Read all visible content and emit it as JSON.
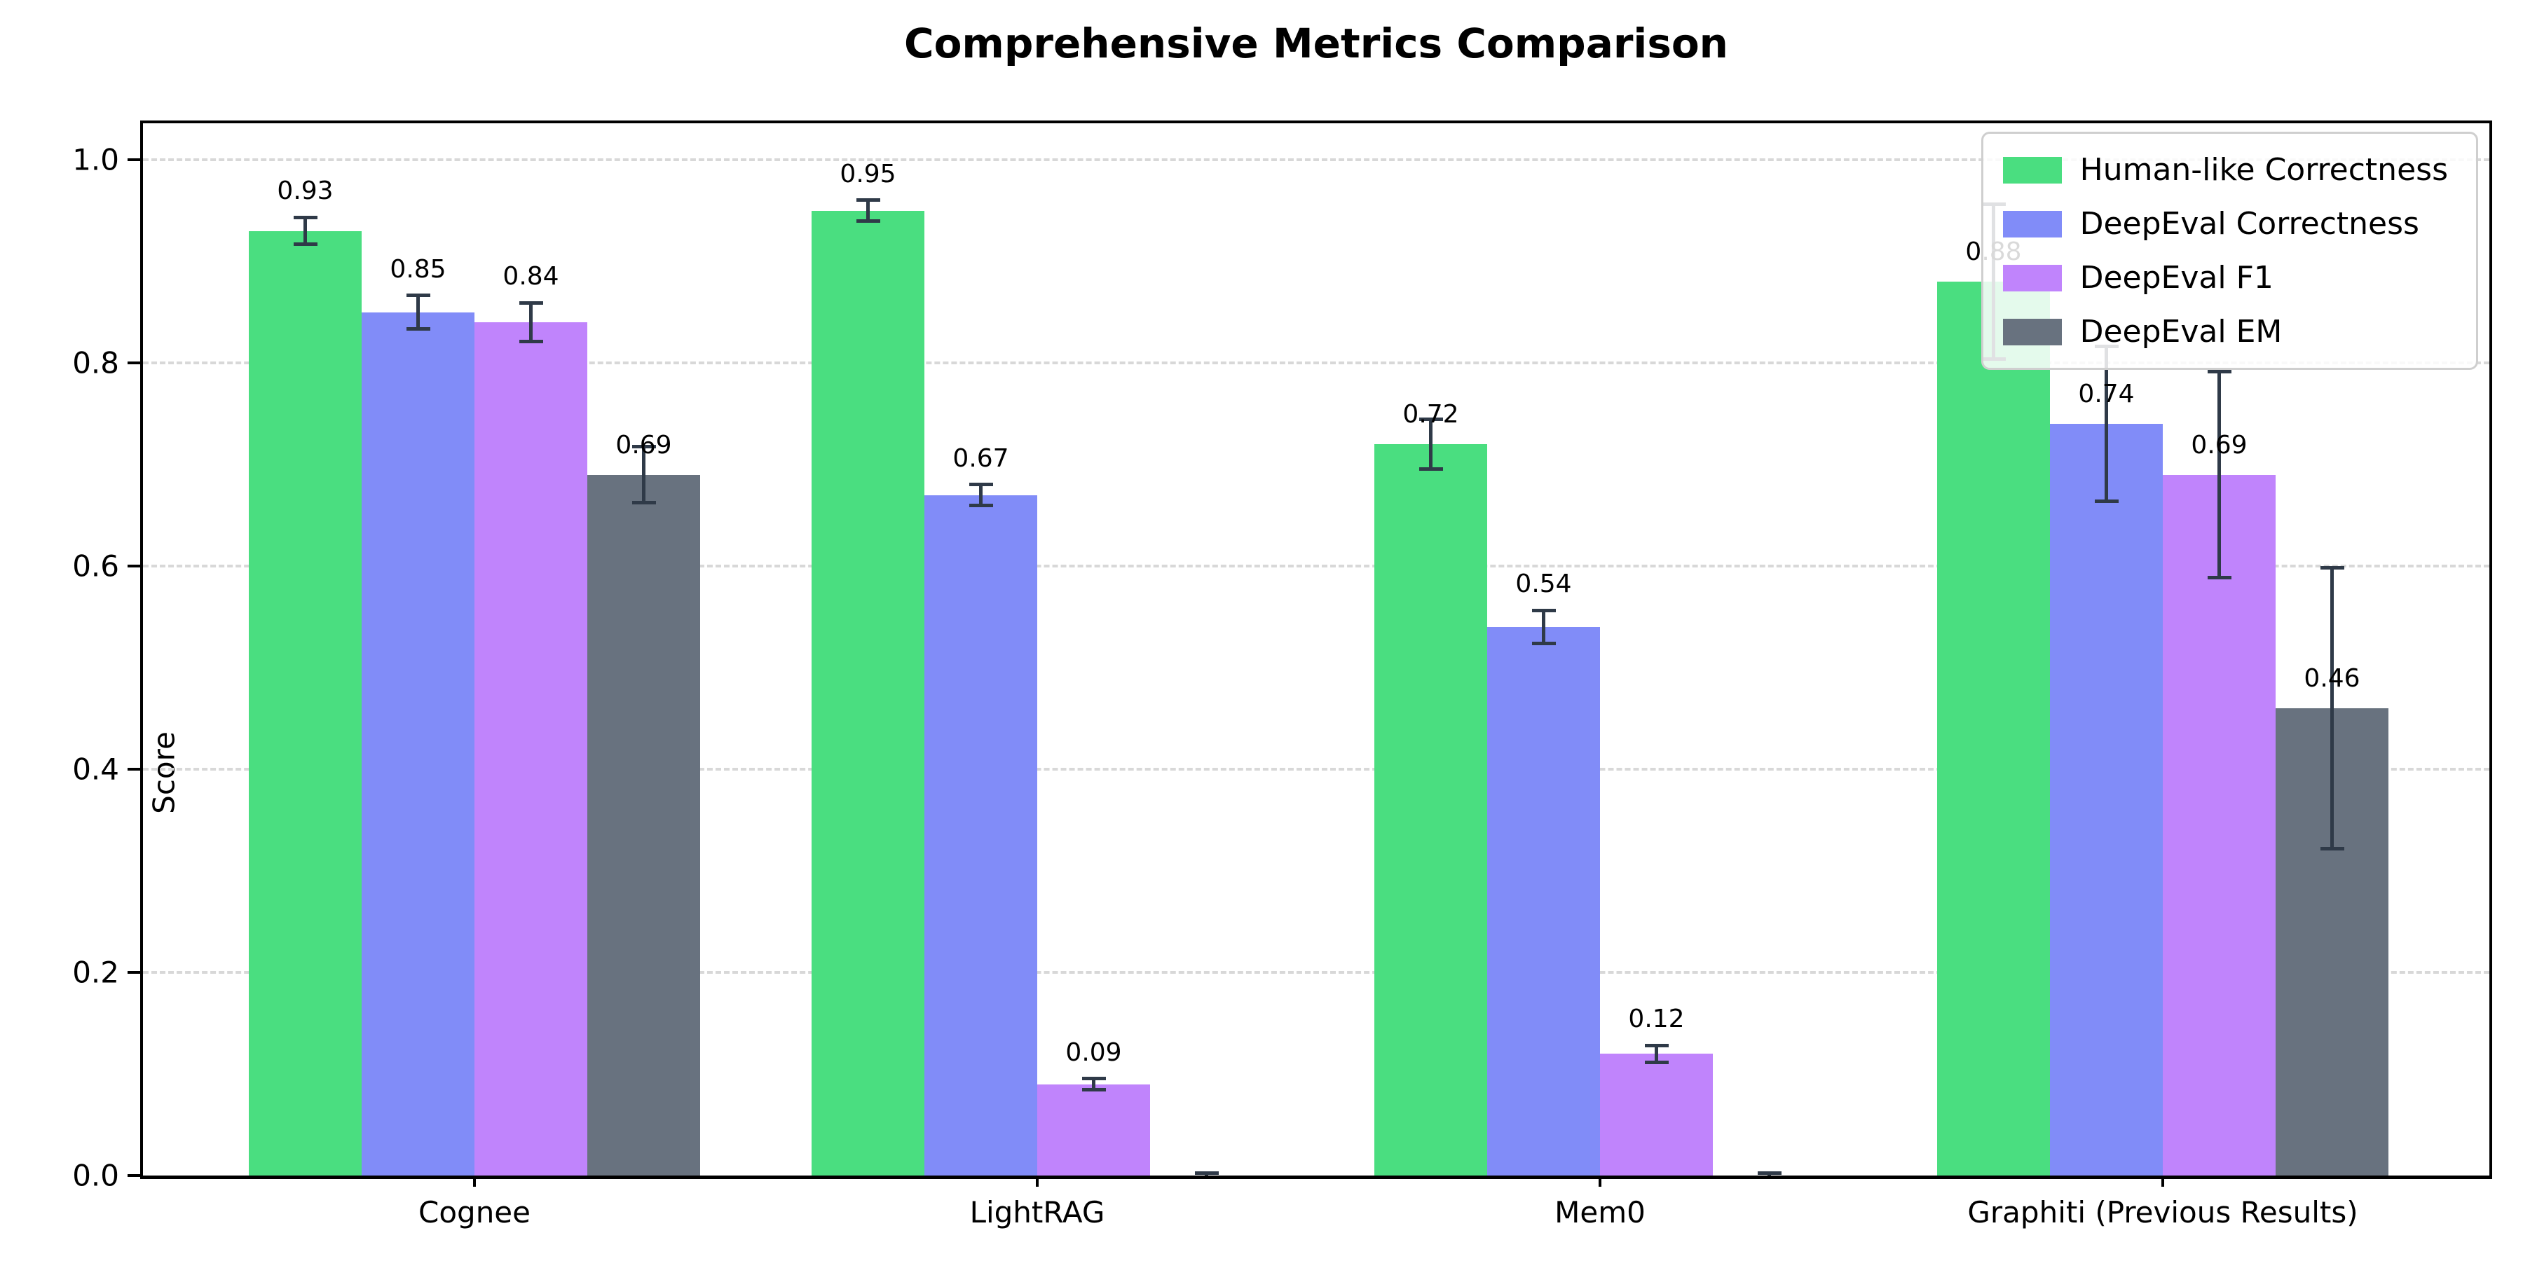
{
  "chart_data": {
    "type": "bar",
    "title": "Comprehensive Metrics Comparison",
    "ylabel": "Score",
    "xlabel": "",
    "ylim": [
      0.0,
      1.04
    ],
    "yticks": [
      "0.0",
      "0.2",
      "0.4",
      "0.6",
      "0.8",
      "1.0"
    ],
    "grid": "horizontal dashed",
    "legend_position": "upper right",
    "background_color": "#ffffff",
    "axis_color": "#000000",
    "gridline_color": "#d8d8d8",
    "error_bar_color": "#2f3a48",
    "categories": [
      "Cognee",
      "LightRAG",
      "Mem0",
      "Graphiti (Previous Results)"
    ],
    "series": [
      {
        "name": "Human-like Correctness",
        "color": "#4ade80",
        "values": [
          0.93,
          0.95,
          0.72,
          0.88
        ],
        "errors": [
          0.015,
          0.012,
          0.026,
          0.078
        ],
        "labels": [
          "0.93",
          "0.95",
          "0.72",
          "0.88"
        ]
      },
      {
        "name": "DeepEval Correctness",
        "color": "#818cf8",
        "values": [
          0.85,
          0.67,
          0.54,
          0.74
        ],
        "errors": [
          0.018,
          0.012,
          0.018,
          0.078
        ],
        "labels": [
          "0.85",
          "0.67",
          "0.54",
          "0.74"
        ]
      },
      {
        "name": "DeepEval F1",
        "color": "#c084fc",
        "values": [
          0.84,
          0.09,
          0.12,
          0.69
        ],
        "errors": [
          0.021,
          0.007,
          0.01,
          0.103
        ],
        "labels": [
          "0.84",
          "0.09",
          "0.12",
          "0.69"
        ]
      },
      {
        "name": "DeepEval EM",
        "color": "#68727f",
        "values": [
          0.69,
          0.0,
          0.0,
          0.46
        ],
        "errors": [
          0.029,
          0.004,
          0.004,
          0.14
        ],
        "labels": [
          "0.69",
          null,
          null,
          "0.46"
        ]
      }
    ]
  }
}
